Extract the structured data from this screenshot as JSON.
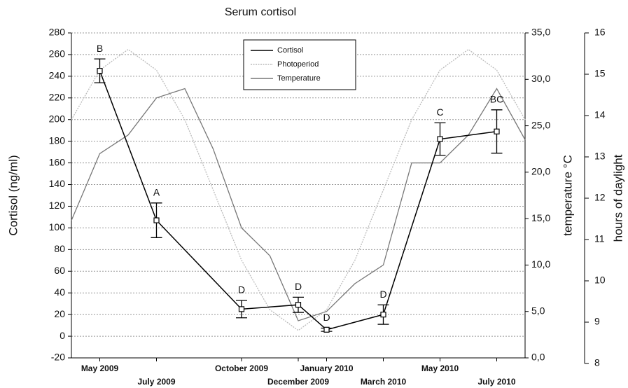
{
  "chart_data": {
    "type": "line",
    "title": "Serum cortisol",
    "ylabel": "Cortisol (ng/ml)",
    "y2label": "temperature °C",
    "y3label": "hours of daylight",
    "xlim": [
      "2009-04",
      "2010-08"
    ],
    "xticks": [
      {
        "value": "2009-05",
        "label": "May 2009"
      },
      {
        "value": "2009-07",
        "label": "July 2009"
      },
      {
        "value": "2009-10",
        "label": "October 2009"
      },
      {
        "value": "2009-12",
        "label": "December 2009"
      },
      {
        "value": "2010-01",
        "label": "January 2010"
      },
      {
        "value": "2010-03",
        "label": "March 2010"
      },
      {
        "value": "2010-05",
        "label": "May 2010"
      },
      {
        "value": "2010-07",
        "label": "July 2010"
      }
    ],
    "ylim": [
      -20,
      280
    ],
    "yticks": [
      -20,
      0,
      20,
      40,
      60,
      80,
      100,
      120,
      140,
      160,
      180,
      200,
      220,
      240,
      260,
      280
    ],
    "y2lim": [
      0,
      35
    ],
    "y2ticks": [
      {
        "value": 0,
        "label": "0,0"
      },
      {
        "value": 5,
        "label": "5,0"
      },
      {
        "value": 10,
        "label": "10,0"
      },
      {
        "value": 15,
        "label": "15,0"
      },
      {
        "value": 20,
        "label": "20,0"
      },
      {
        "value": 25,
        "label": "25,0"
      },
      {
        "value": 30,
        "label": "30,0"
      },
      {
        "value": 35,
        "label": "35,0"
      }
    ],
    "y3lim": [
      8,
      16
    ],
    "y3ticks": [
      8,
      9,
      10,
      11,
      12,
      13,
      14,
      15,
      16
    ],
    "grid": true,
    "legend": "top",
    "series": [
      {
        "name": "Cortisol",
        "color": "#000000",
        "axis": "y",
        "x": [
          "2009-05",
          "2009-07",
          "2009-10",
          "2009-12",
          "2010-01",
          "2010-03",
          "2010-05",
          "2010-07"
        ],
        "values": [
          245,
          107,
          25,
          29,
          6,
          20,
          182,
          189
        ],
        "errors": [
          11,
          16,
          8,
          7,
          1.5,
          9,
          15,
          20
        ],
        "labels": [
          "B",
          "A",
          "D",
          "D",
          "D",
          "D",
          "C",
          "BC"
        ]
      },
      {
        "name": "Photoperiod",
        "color": "#bbbbbb",
        "axis": "y3",
        "dash": "dotted",
        "x": [
          "2009-04",
          "2009-05",
          "2009-06",
          "2009-07",
          "2009-08",
          "2009-09",
          "2009-10",
          "2009-11",
          "2009-12",
          "2010-01",
          "2010-02",
          "2010-03",
          "2010-04",
          "2010-05",
          "2010-06",
          "2010-07",
          "2010-08"
        ],
        "values": [
          13.9,
          15.1,
          15.6,
          15.1,
          13.9,
          12.2,
          10.5,
          9.3,
          8.8,
          9.3,
          10.5,
          12.2,
          13.9,
          15.1,
          15.6,
          15.1,
          13.9
        ]
      },
      {
        "name": "Temperature",
        "color": "#777777",
        "axis": "y2",
        "x": [
          "2009-04",
          "2009-05",
          "2009-06",
          "2009-07",
          "2009-08",
          "2009-09",
          "2009-10",
          "2009-11",
          "2009-12",
          "2010-01",
          "2010-02",
          "2010-03",
          "2010-04",
          "2010-05",
          "2010-06",
          "2010-07",
          "2010-08"
        ],
        "values": [
          14.8,
          22,
          24,
          28,
          29,
          22.5,
          14,
          11,
          4,
          5,
          8,
          10,
          21,
          21,
          24,
          29,
          23.5
        ]
      }
    ]
  }
}
